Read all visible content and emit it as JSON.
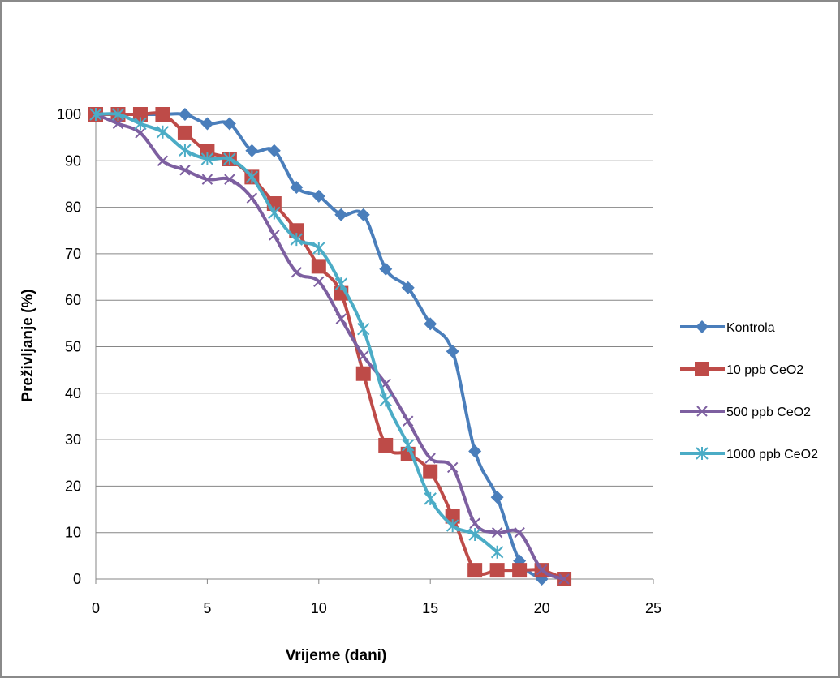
{
  "chart_data": {
    "type": "line",
    "title": "",
    "xlabel": "Vrijeme (dani)",
    "ylabel": "Preživljanje (%)",
    "xlim": [
      0,
      25
    ],
    "ylim": [
      0,
      100
    ],
    "x_ticks": [
      "0",
      "5",
      "10",
      "15",
      "20",
      "25"
    ],
    "y_ticks": [
      "0",
      "10",
      "20",
      "30",
      "40",
      "50",
      "60",
      "70",
      "80",
      "90",
      "100"
    ],
    "grid": "horizontal",
    "legend_position": "right",
    "series": [
      {
        "name": "Kontrola",
        "color": "#4a7ebb",
        "marker": "diamond",
        "x": [
          0,
          1,
          2,
          3,
          4,
          5,
          6,
          7,
          8,
          9,
          10,
          11,
          12,
          13,
          14,
          15,
          16,
          17,
          18,
          19,
          20
        ],
        "y": [
          100,
          100,
          100,
          100,
          100,
          98,
          98,
          92.2,
          92.2,
          84.3,
          82.4,
          78.4,
          78.4,
          66.7,
          62.7,
          54.9,
          49,
          27.5,
          17.6,
          3.9,
          0
        ]
      },
      {
        "name": "10 ppb CeO2",
        "color": "#be4b48",
        "marker": "square",
        "x": [
          0,
          1,
          2,
          3,
          4,
          5,
          6,
          7,
          8,
          9,
          10,
          11,
          12,
          13,
          14,
          15,
          16,
          17,
          18,
          19,
          20,
          21
        ],
        "y": [
          100,
          100,
          100,
          100,
          96,
          92,
          90.4,
          86.5,
          80.8,
          75,
          67.3,
          61.5,
          44.2,
          28.8,
          26.9,
          23.1,
          13.5,
          1.9,
          1.9,
          1.9,
          1.9,
          0
        ]
      },
      {
        "name": "500 ppb CeO2",
        "color": "#7d5fa0",
        "marker": "x",
        "x": [
          0,
          1,
          2,
          3,
          4,
          5,
          6,
          7,
          8,
          9,
          10,
          11,
          12,
          13,
          14,
          15,
          16,
          17,
          18,
          19,
          20,
          21
        ],
        "y": [
          100,
          98,
          96,
          90,
          88,
          86,
          86,
          82,
          74,
          66,
          64,
          56,
          48,
          42,
          34,
          26,
          24,
          12,
          10,
          10,
          2,
          0
        ]
      },
      {
        "name": "1000 ppb CeO2",
        "color": "#4bacc6",
        "marker": "asterisk",
        "x": [
          0,
          1,
          2,
          3,
          4,
          5,
          6,
          7,
          8,
          9,
          10,
          11,
          12,
          13,
          14,
          15,
          16,
          17,
          18
        ],
        "y": [
          100,
          100,
          98,
          96.2,
          92.3,
          90.4,
          90.4,
          86.5,
          78.8,
          73.1,
          71.2,
          63.5,
          53.8,
          38.5,
          28.8,
          17.3,
          11.5,
          9.6,
          5.8
        ]
      }
    ]
  }
}
